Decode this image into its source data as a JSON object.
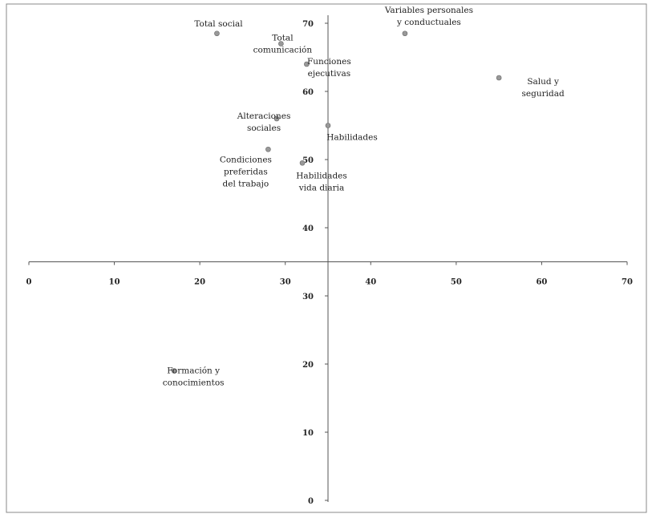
{
  "chart_data": {
    "type": "scatter",
    "title": "",
    "xlabel": "",
    "ylabel": "",
    "xlim": [
      0,
      70
    ],
    "ylim": [
      0,
      70
    ],
    "x_cross": 35,
    "y_cross": 35,
    "x_ticks": [
      "0",
      "10",
      "20",
      "30",
      "40",
      "50",
      "60",
      "70"
    ],
    "y_ticks": [
      "0",
      "10",
      "20",
      "30",
      "40",
      "50",
      "60",
      "70"
    ],
    "points": [
      {
        "label": "Total social",
        "x": 22,
        "y": 68.5
      },
      {
        "label": "Total comunicación",
        "x": 29.5,
        "y": 67
      },
      {
        "label": "Funciones ejecutivas",
        "x": 32.5,
        "y": 64
      },
      {
        "label": "Variables personales y conductuales",
        "x": 44,
        "y": 68.5
      },
      {
        "label": "Salud y seguridad",
        "x": 55,
        "y": 62
      },
      {
        "label": "Alteraciones sociales",
        "x": 29,
        "y": 56
      },
      {
        "label": "Habilidades",
        "x": 35,
        "y": 55
      },
      {
        "label": "Condiciones preferidas del trabajo",
        "x": 28,
        "y": 51.5
      },
      {
        "label": "Habilidades vida diaria",
        "x": 32,
        "y": 49.5
      },
      {
        "label": "Formación y conocimientos",
        "x": 17,
        "y": 19
      }
    ],
    "grid": false,
    "legend": "none",
    "colors": {
      "axis": "#555555",
      "marker": "#999999",
      "frame": "#888888",
      "text": "#222222"
    }
  }
}
